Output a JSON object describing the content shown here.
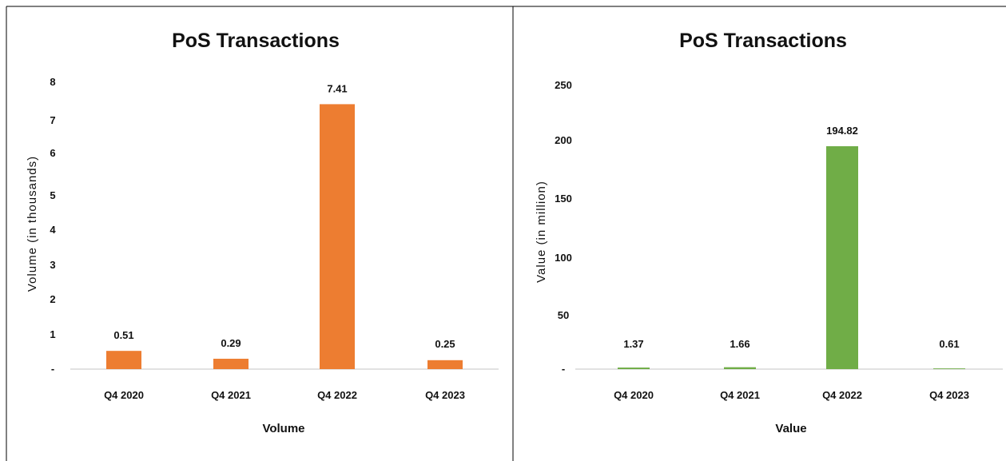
{
  "chart_data": [
    {
      "type": "bar",
      "title": "PoS Transactions",
      "xlabel": "Volume",
      "ylabel": "Volume (in thousands)",
      "categories": [
        "Q4 2020",
        "Q4 2021",
        "Q4 2022",
        "Q4 2023"
      ],
      "values": [
        0.51,
        0.29,
        7.41,
        0.25
      ],
      "data_labels": [
        "0.51",
        "0.29",
        "7.41",
        "0.25"
      ],
      "ylim": [
        0,
        8
      ],
      "y_ticks": [
        "-",
        "1",
        "2",
        "3",
        "4",
        "5",
        "6",
        "7",
        "8"
      ],
      "bar_color": "#ED7D31",
      "grid": false,
      "legend": "none"
    },
    {
      "type": "bar",
      "title": "PoS Transactions",
      "xlabel": "Value",
      "ylabel": "Value (in million)",
      "categories": [
        "Q4 2020",
        "Q4 2021",
        "Q4 2022",
        "Q4 2023"
      ],
      "values": [
        1.37,
        1.66,
        194.82,
        0.61
      ],
      "data_labels": [
        "1.37",
        "1.66",
        "194.82",
        "0.61"
      ],
      "ylim": [
        0,
        250
      ],
      "y_ticks": [
        "-",
        "50",
        "100",
        "150",
        "200",
        "250"
      ],
      "bar_color": "#70AD47",
      "grid": false,
      "legend": "none"
    }
  ]
}
